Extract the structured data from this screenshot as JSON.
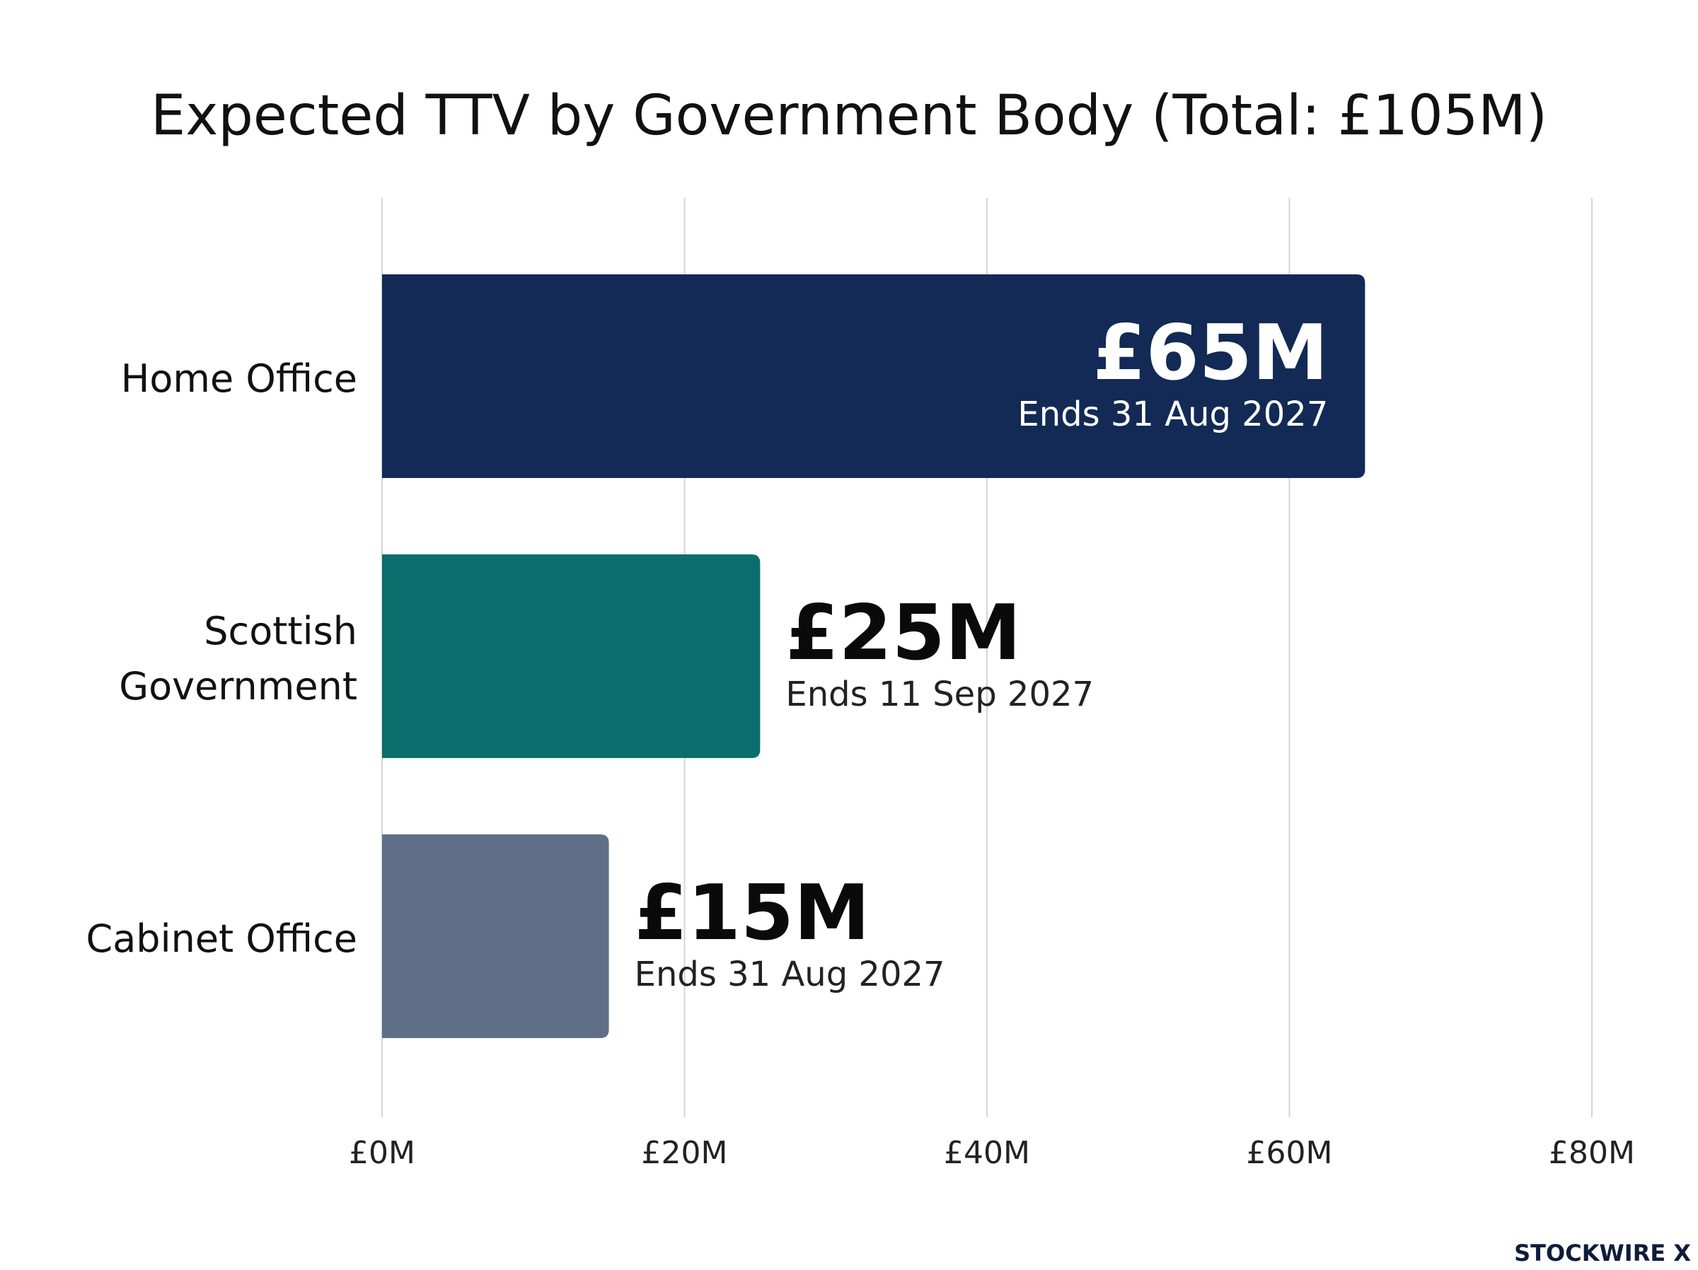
{
  "chart_data": {
    "type": "bar",
    "orientation": "horizontal",
    "title": "Expected TTV by Government Body (Total: £105M)",
    "xlabel": "",
    "ylabel": "",
    "categories": [
      "Home Office",
      "Scottish Government",
      "Cabinet Office"
    ],
    "category_lines": [
      [
        "Home Office"
      ],
      [
        "Scottish",
        "Government"
      ],
      [
        "Cabinet Office"
      ]
    ],
    "values": [
      65,
      25,
      15
    ],
    "value_labels": [
      "£65M",
      "£25M",
      "£15M"
    ],
    "end_dates": [
      "Ends 31 Aug 2027",
      "Ends 11 Sep 2027",
      "Ends 31 Aug 2027"
    ],
    "colors": [
      "#122a55",
      "#0b6e6d",
      "#5f6f87"
    ],
    "unit": "£M",
    "xlim": [
      0,
      80
    ],
    "xticks": [
      0,
      20,
      40,
      60,
      80
    ],
    "xtick_labels": [
      "£0M",
      "£20M",
      "£40M",
      "£60M",
      "£80M"
    ],
    "grid": true,
    "legend": "none"
  },
  "watermark": {
    "text": "STOCKWIRE X"
  }
}
